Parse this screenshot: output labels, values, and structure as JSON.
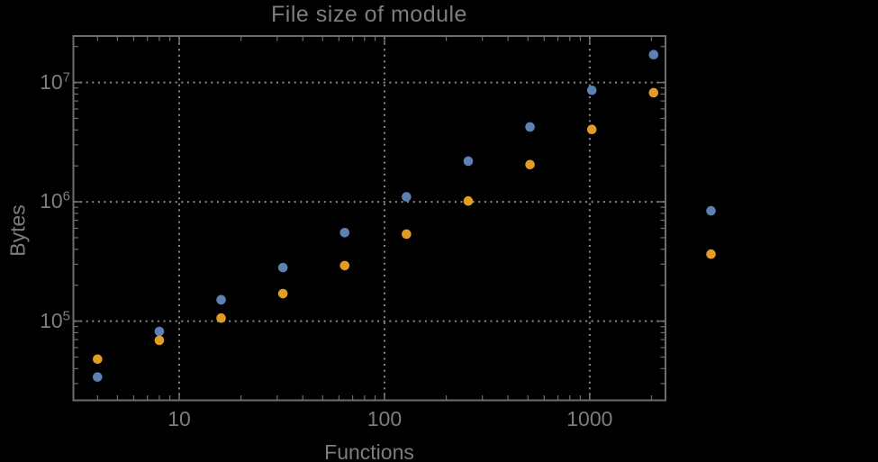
{
  "chart_data": {
    "type": "scatter",
    "title": "File size of module",
    "xlabel": "Functions",
    "ylabel": "Bytes",
    "x_scale": "log",
    "y_scale": "log",
    "xlim": [
      3.05,
      2340
    ],
    "ylim": [
      21700,
      24500000
    ],
    "grid": "dotted",
    "legend": "none",
    "frame": true,
    "colors": {
      "background": "#000000",
      "frame": "#6e6e6e",
      "gridline": "#8a8a8a",
      "text": "#7d7d7d",
      "series_blue": "#5e81b5",
      "series_orange": "#e19c24"
    },
    "x_ticks": [
      10,
      100,
      1000
    ],
    "x_tick_labels": [
      "10",
      "100",
      "1000"
    ],
    "y_ticks": [
      100000,
      1000000,
      10000000
    ],
    "y_tick_labels": [
      {
        "base": "10",
        "exp": "5"
      },
      {
        "base": "10",
        "exp": "6"
      },
      {
        "base": "10",
        "exp": "7"
      }
    ],
    "series": [
      {
        "name": "series-blue",
        "color": "#5e81b5",
        "points": [
          [
            4,
            34000
          ],
          [
            8,
            82000
          ],
          [
            16,
            151000
          ],
          [
            32,
            281000
          ],
          [
            64,
            552000
          ],
          [
            128,
            1100000
          ],
          [
            256,
            2190000
          ],
          [
            512,
            4240000
          ],
          [
            1024,
            8600000
          ],
          [
            2048,
            17100000
          ],
          [
            3900,
            840000
          ]
        ]
      },
      {
        "name": "series-orange",
        "color": "#e19c24",
        "points": [
          [
            4,
            48000
          ],
          [
            8,
            69000
          ],
          [
            16,
            106000
          ],
          [
            32,
            170000
          ],
          [
            64,
            292000
          ],
          [
            128,
            536000
          ],
          [
            256,
            1015000
          ],
          [
            512,
            2050000
          ],
          [
            1024,
            4040000
          ],
          [
            2048,
            8200000
          ],
          [
            3900,
            364000
          ]
        ]
      }
    ]
  }
}
